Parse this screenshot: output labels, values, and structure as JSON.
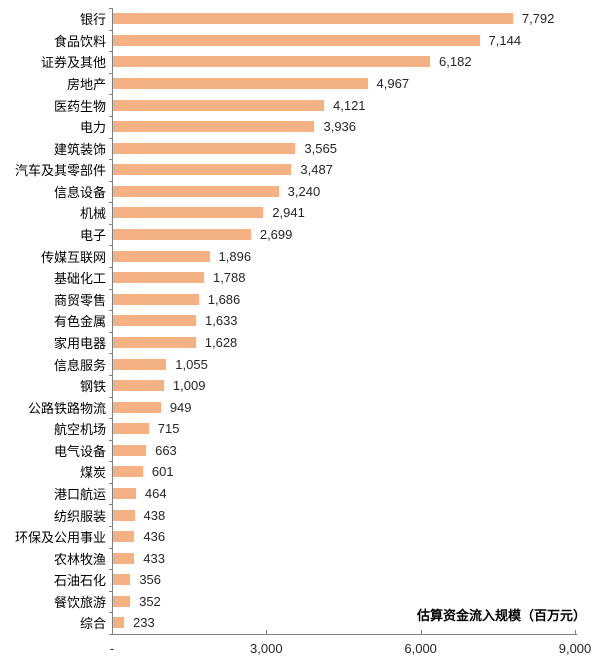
{
  "chart_data": {
    "type": "bar",
    "orientation": "horizontal",
    "title": "",
    "xlabel": "估算资金流入规模（百万元）",
    "ylabel": "",
    "xlim": [
      0,
      9000
    ],
    "xticks": [
      0,
      3000,
      6000,
      9000
    ],
    "xticklabels": [
      "-",
      "3,000",
      "6,000",
      "9,000"
    ],
    "grid": false,
    "legend": false,
    "bar_color": "#F4B183",
    "axis_color": "#808080",
    "categories": [
      "银行",
      "食品饮料",
      "证券及其他",
      "房地产",
      "医药生物",
      "电力",
      "建筑装饰",
      "汽车及其零部件",
      "信息设备",
      "机械",
      "电子",
      "传媒互联网",
      "基础化工",
      "商贸零售",
      "有色金属",
      "家用电器",
      "信息服务",
      "钢铁",
      "公路铁路物流",
      "航空机场",
      "电气设备",
      "煤炭",
      "港口航运",
      "纺织服装",
      "环保及公用事业",
      "农林牧渔",
      "石油石化",
      "餐饮旅游",
      "综合"
    ],
    "values": [
      7792,
      7144,
      6182,
      4967,
      4121,
      3936,
      3565,
      3487,
      3240,
      2941,
      2699,
      1896,
      1788,
      1686,
      1633,
      1628,
      1055,
      1009,
      949,
      715,
      663,
      601,
      464,
      438,
      436,
      433,
      356,
      352,
      233
    ],
    "value_labels": [
      "7,792",
      "7,144",
      "6,182",
      "4,967",
      "4,121",
      "3,936",
      "3,565",
      "3,487",
      "3,240",
      "2,941",
      "2,699",
      "1,896",
      "1,788",
      "1,686",
      "1,633",
      "1,628",
      "1,055",
      "1,009",
      "949",
      "715",
      "663",
      "601",
      "464",
      "438",
      "436",
      "433",
      "356",
      "352",
      "233"
    ]
  }
}
